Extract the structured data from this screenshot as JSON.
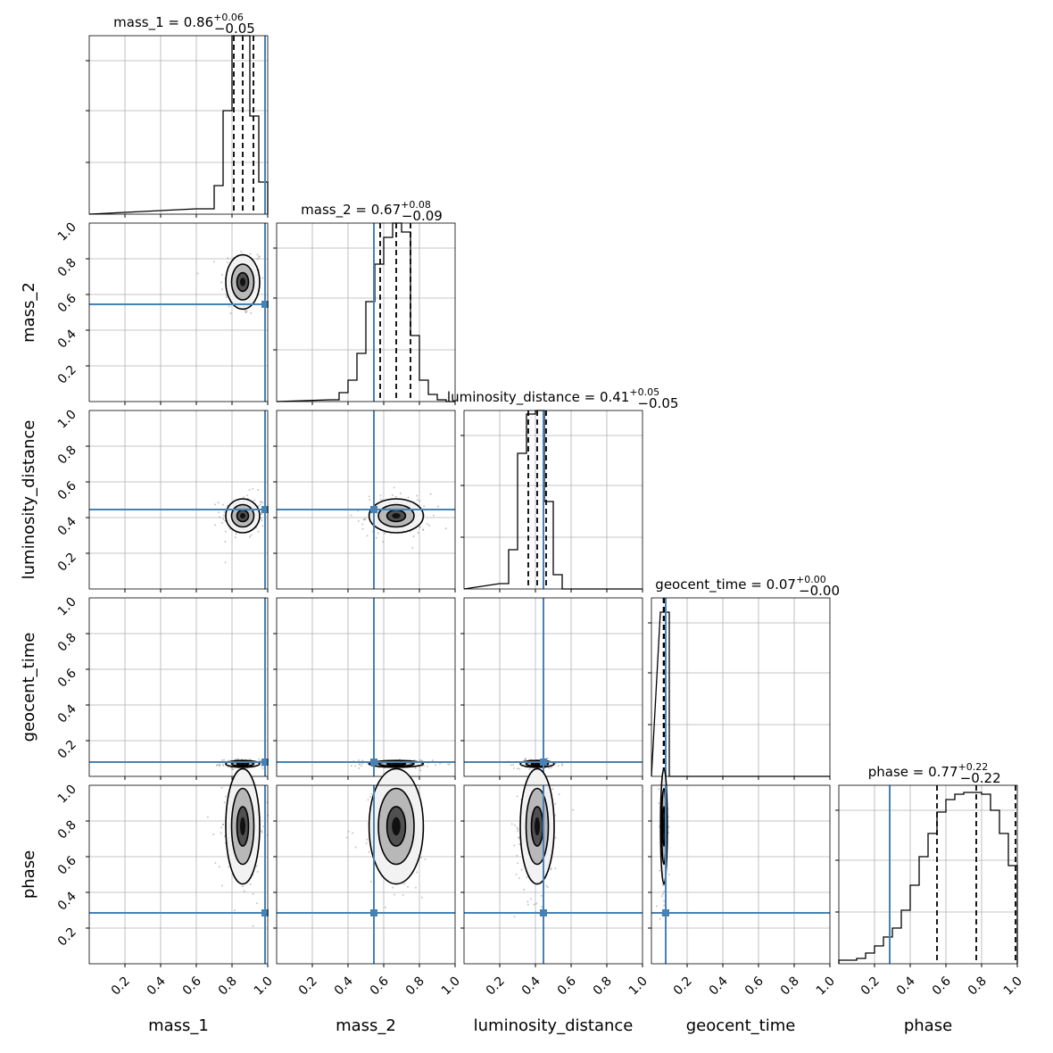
{
  "chart_data": {
    "type": "corner",
    "parameters": [
      "mass_1",
      "mass_2",
      "luminosity_distance",
      "geocent_time",
      "phase"
    ],
    "axis_labels": [
      "mass_1",
      "mass_2",
      "luminosity_distance",
      "geocent_time",
      "phase"
    ],
    "axis_range": [
      0,
      1
    ],
    "tick_values": [
      0.2,
      0.4,
      0.6,
      0.8,
      1.0
    ],
    "tick_labels": [
      "0.2",
      "0.4",
      "0.6",
      "0.8",
      "1.0"
    ],
    "grid": true,
    "colors": {
      "truth": "#4682b4",
      "hist": "#000000",
      "grid": "#b0b0b0",
      "points": "#808080"
    },
    "truths": [
      0.985,
      0.545,
      0.445,
      0.08,
      0.285
    ],
    "titles": [
      {
        "name": "mass_1",
        "value": "0.86",
        "plus": "+0.06",
        "minus": "−0.05"
      },
      {
        "name": "mass_2",
        "value": "0.67",
        "plus": "+0.08",
        "minus": "−0.09"
      },
      {
        "name": "luminosity_distance",
        "value": "0.41",
        "plus": "+0.05",
        "minus": "−0.05"
      },
      {
        "name": "geocent_time",
        "value": "0.07",
        "plus": "+0.00",
        "minus": "−0.00"
      },
      {
        "name": "phase",
        "value": "0.77",
        "plus": "+0.22",
        "minus": "−0.22"
      }
    ],
    "quantiles": [
      [
        0.81,
        0.86,
        0.92
      ],
      [
        0.58,
        0.67,
        0.75
      ],
      [
        0.36,
        0.41,
        0.46
      ],
      [
        0.068,
        0.07,
        0.072
      ],
      [
        0.55,
        0.77,
        0.99
      ]
    ],
    "histograms": [
      {
        "bin_width": 0.05,
        "bins": [
          [
            0.6,
            0.03
          ],
          [
            0.65,
            0.03
          ],
          [
            0.7,
            0.16
          ],
          [
            0.75,
            0.58
          ],
          [
            0.8,
            1.0
          ],
          [
            0.85,
            1.0
          ],
          [
            0.9,
            0.55
          ],
          [
            0.95,
            0.18
          ]
        ]
      },
      {
        "bin_width": 0.05,
        "bins": [
          [
            0.3,
            0.01
          ],
          [
            0.35,
            0.05
          ],
          [
            0.4,
            0.12
          ],
          [
            0.45,
            0.27
          ],
          [
            0.5,
            0.56
          ],
          [
            0.55,
            0.77
          ],
          [
            0.6,
            0.92
          ],
          [
            0.65,
            1.0
          ],
          [
            0.7,
            0.95
          ],
          [
            0.75,
            0.37
          ],
          [
            0.8,
            0.12
          ],
          [
            0.85,
            0.04
          ],
          [
            0.9,
            0.01
          ]
        ]
      },
      {
        "bin_width": 0.05,
        "bins": [
          [
            0.2,
            0.03
          ],
          [
            0.25,
            0.22
          ],
          [
            0.3,
            0.76
          ],
          [
            0.35,
            0.98
          ],
          [
            0.4,
            1.0
          ],
          [
            0.45,
            0.49
          ],
          [
            0.5,
            0.08
          ]
        ]
      },
      {
        "bin_width": 0.025,
        "bins": [
          [
            0.05,
            0.92
          ],
          [
            0.075,
            0.92
          ]
        ]
      },
      {
        "bin_width": 0.05,
        "bins": [
          [
            0.0,
            0.02
          ],
          [
            0.05,
            0.02
          ],
          [
            0.1,
            0.03
          ],
          [
            0.15,
            0.06
          ],
          [
            0.2,
            0.1
          ],
          [
            0.25,
            0.15
          ],
          [
            0.3,
            0.2
          ],
          [
            0.35,
            0.3
          ],
          [
            0.4,
            0.44
          ],
          [
            0.45,
            0.6
          ],
          [
            0.5,
            0.73
          ],
          [
            0.55,
            0.85
          ],
          [
            0.6,
            0.92
          ],
          [
            0.65,
            0.95
          ],
          [
            0.7,
            0.96
          ],
          [
            0.75,
            0.96
          ],
          [
            0.8,
            0.95
          ],
          [
            0.85,
            0.86
          ],
          [
            0.9,
            0.73
          ],
          [
            0.95,
            0.55
          ]
        ]
      }
    ],
    "posterior_centers": [
      0.86,
      0.67,
      0.41,
      0.07,
      0.77
    ],
    "posterior_widths": [
      0.05,
      0.08,
      0.05,
      0.01,
      0.17
    ]
  }
}
